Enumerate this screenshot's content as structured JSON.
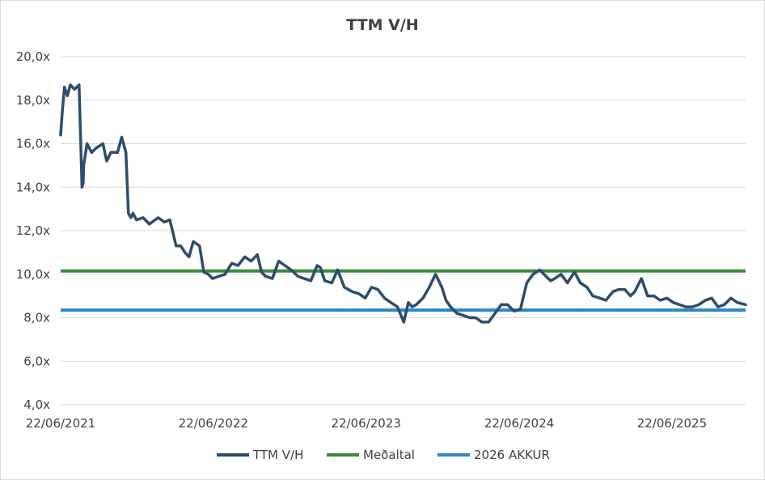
{
  "chart_data": {
    "type": "line",
    "title": "TTM V/H",
    "xlabel": "",
    "ylabel": "",
    "x_range": [
      "2021-06-22",
      "2025-12-15"
    ],
    "ylim": [
      4.0,
      20.0
    ],
    "y_ticks": [
      4,
      6,
      8,
      10,
      12,
      14,
      16,
      18,
      20
    ],
    "y_tick_labels": [
      "4,0x",
      "6,0x",
      "8,0x",
      "10,0x",
      "12,0x",
      "14,0x",
      "16,0x",
      "18,0x",
      "20,0x"
    ],
    "x_ticks": [
      "2021-06-22",
      "2022-06-22",
      "2023-06-22",
      "2024-06-22",
      "2025-06-22"
    ],
    "x_tick_labels": [
      "22/06/2021",
      "22/06/2022",
      "22/06/2023",
      "22/06/2024",
      "22/06/2025"
    ],
    "grid": "horizontal",
    "legend_position": "bottom",
    "colors": {
      "ttm": "#2e4d6b",
      "mean": "#3a8a3a",
      "akkur": "#2e86c8",
      "grid": "#d9d9d9"
    },
    "series": [
      {
        "name": "TTM V/H",
        "x": [
          "2021-06-22",
          "2021-06-26",
          "2021-07-01",
          "2021-07-08",
          "2021-07-15",
          "2021-07-25",
          "2021-08-05",
          "2021-08-12",
          "2021-08-15",
          "2021-08-16",
          "2021-08-24",
          "2021-09-04",
          "2021-09-15",
          "2021-10-01",
          "2021-10-10",
          "2021-10-20",
          "2021-11-05",
          "2021-11-15",
          "2021-11-25",
          "2021-12-01",
          "2021-12-07",
          "2021-12-12",
          "2021-12-20",
          "2022-01-05",
          "2022-01-20",
          "2022-02-10",
          "2022-02-25",
          "2022-03-10",
          "2022-03-25",
          "2022-04-05",
          "2022-04-15",
          "2022-04-25",
          "2022-05-05",
          "2022-05-20",
          "2022-05-30",
          "2022-06-10",
          "2022-06-20",
          "2022-07-05",
          "2022-07-20",
          "2022-08-05",
          "2022-08-20",
          "2022-09-05",
          "2022-09-20",
          "2022-10-05",
          "2022-10-15",
          "2022-10-25",
          "2022-11-10",
          "2022-11-25",
          "2022-12-10",
          "2022-12-25",
          "2023-01-10",
          "2023-01-25",
          "2023-02-10",
          "2023-02-25",
          "2023-03-05",
          "2023-03-15",
          "2023-04-01",
          "2023-04-15",
          "2023-05-01",
          "2023-05-20",
          "2023-06-05",
          "2023-06-20",
          "2023-07-05",
          "2023-07-20",
          "2023-08-05",
          "2023-08-20",
          "2023-09-05",
          "2023-09-20",
          "2023-10-01",
          "2023-10-10",
          "2023-10-20",
          "2023-11-05",
          "2023-11-20",
          "2023-12-05",
          "2023-12-20",
          "2023-12-30",
          "2024-01-10",
          "2024-01-25",
          "2024-02-10",
          "2024-02-25",
          "2024-03-10",
          "2024-03-25",
          "2024-04-10",
          "2024-04-25",
          "2024-05-10",
          "2024-05-25",
          "2024-06-10",
          "2024-06-25",
          "2024-07-10",
          "2024-07-25",
          "2024-08-10",
          "2024-08-25",
          "2024-09-05",
          "2024-09-15",
          "2024-09-30",
          "2024-10-15",
          "2024-11-01",
          "2024-11-15",
          "2024-12-01",
          "2024-12-15",
          "2025-01-01",
          "2025-01-15",
          "2025-02-01",
          "2025-02-15",
          "2025-03-01",
          "2025-03-15",
          "2025-03-25",
          "2025-04-10",
          "2025-04-25",
          "2025-05-10",
          "2025-05-25",
          "2025-06-10",
          "2025-06-25",
          "2025-07-10",
          "2025-07-25",
          "2025-08-10",
          "2025-08-25",
          "2025-09-10",
          "2025-09-25",
          "2025-10-10",
          "2025-10-25",
          "2025-11-10",
          "2025-11-25",
          "2025-12-15"
        ],
        "values": [
          16.4,
          17.5,
          18.6,
          18.2,
          18.7,
          18.5,
          18.7,
          14.0,
          14.2,
          15.0,
          16.0,
          15.6,
          15.8,
          16.0,
          15.2,
          15.6,
          15.6,
          16.3,
          15.6,
          12.8,
          12.6,
          12.8,
          12.5,
          12.6,
          12.3,
          12.6,
          12.4,
          12.5,
          11.3,
          11.3,
          11.0,
          10.8,
          11.5,
          11.3,
          10.1,
          10.0,
          9.8,
          9.9,
          10.0,
          10.5,
          10.4,
          10.8,
          10.6,
          10.9,
          10.1,
          9.9,
          9.8,
          10.6,
          10.4,
          10.2,
          9.9,
          9.8,
          9.7,
          10.4,
          10.3,
          9.7,
          9.6,
          10.2,
          9.4,
          9.2,
          9.1,
          8.9,
          9.4,
          9.3,
          8.9,
          8.7,
          8.5,
          7.8,
          8.7,
          8.5,
          8.6,
          8.9,
          9.4,
          10.0,
          9.4,
          8.8,
          8.5,
          8.2,
          8.1,
          8.0,
          8.0,
          7.8,
          7.8,
          8.2,
          8.6,
          8.6,
          8.3,
          8.4,
          9.6,
          10.0,
          10.2,
          9.9,
          9.7,
          9.8,
          10.0,
          9.6,
          10.1,
          9.6,
          9.4,
          9.0,
          8.9,
          8.8,
          9.2,
          9.3,
          9.3,
          9.0,
          9.2,
          9.8,
          9.0,
          9.0,
          8.8,
          8.9,
          8.7,
          8.6,
          8.5,
          8.5,
          8.6,
          8.8,
          8.9,
          8.5,
          8.6,
          8.9,
          8.7,
          8.6
        ]
      },
      {
        "name": "Meðaltal",
        "value": 10.15
      },
      {
        "name": "2026 AKKUR",
        "value": 8.35
      }
    ]
  }
}
